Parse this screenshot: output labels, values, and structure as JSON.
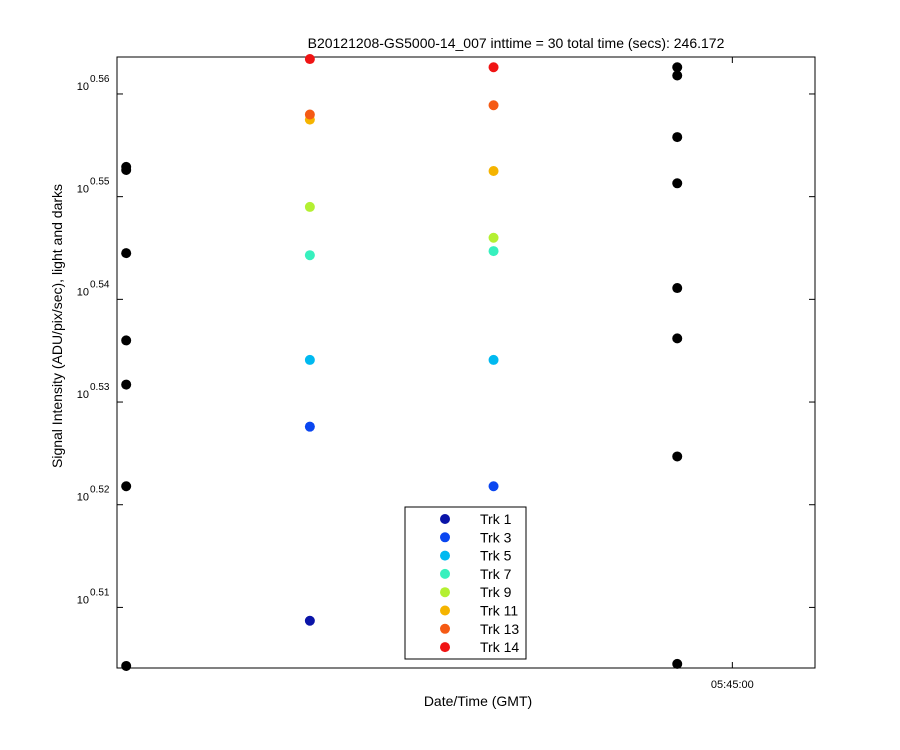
{
  "chart_data": {
    "type": "scatter",
    "title": "B20121208-GS5000-14_007 inttime = 30 total time (secs): 246.172",
    "xlabel": "Date/Time (GMT)",
    "ylabel": "Signal Intensity (ADU/pix/sec), light and darks",
    "y_scale": "log10",
    "x_ticks": [
      {
        "label": "05:45:00",
        "x": 3.3
      }
    ],
    "y_ticks": [
      {
        "base": "10",
        "exp": "0.51",
        "value": 0.51
      },
      {
        "base": "10",
        "exp": "0.52",
        "value": 0.52
      },
      {
        "base": "10",
        "exp": "0.53",
        "value": 0.53
      },
      {
        "base": "10",
        "exp": "0.54",
        "value": 0.54
      },
      {
        "base": "10",
        "exp": "0.55",
        "value": 0.55
      },
      {
        "base": "10",
        "exp": "0.56",
        "value": 0.56
      }
    ],
    "xlim": [
      -0.05,
      3.75
    ],
    "ylim": [
      0.5041,
      0.5636
    ],
    "grid": false,
    "legend_position": "bottom-center",
    "series": [
      {
        "name": "Trk 1",
        "color": "#0a14a8",
        "points": [
          [
            1,
            0.5087
          ]
        ]
      },
      {
        "name": "Trk 3",
        "color": "#0a46f0",
        "points": [
          [
            1,
            0.5276
          ],
          [
            2,
            0.5218
          ]
        ]
      },
      {
        "name": "Trk 5",
        "color": "#00b9f0",
        "points": [
          [
            1,
            0.5341
          ],
          [
            2,
            0.5341
          ]
        ]
      },
      {
        "name": "Trk 7",
        "color": "#37f0be",
        "points": [
          [
            1,
            0.5443
          ],
          [
            2,
            0.5447
          ]
        ]
      },
      {
        "name": "Trk 9",
        "color": "#b4f032",
        "points": [
          [
            1,
            0.549
          ],
          [
            2,
            0.546
          ]
        ]
      },
      {
        "name": "Trk 11",
        "color": "#f5b400",
        "points": [
          [
            1,
            0.5575
          ],
          [
            2,
            0.5525
          ]
        ]
      },
      {
        "name": "Trk 13",
        "color": "#f55a14",
        "points": [
          [
            1,
            0.558
          ],
          [
            2,
            0.5589
          ]
        ]
      },
      {
        "name": "Trk 14",
        "color": "#f01414",
        "points": [
          [
            1,
            0.5634
          ],
          [
            2,
            0.5626
          ]
        ]
      }
    ],
    "darks": {
      "color": "#000000",
      "points": [
        [
          0,
          0.5529
        ],
        [
          0,
          0.5526
        ],
        [
          0,
          0.5445
        ],
        [
          0,
          0.536
        ],
        [
          0,
          0.5317
        ],
        [
          0,
          0.5218
        ],
        [
          0,
          0.5043
        ],
        [
          3,
          0.5626
        ],
        [
          3,
          0.5618
        ],
        [
          3,
          0.5558
        ],
        [
          3,
          0.5513
        ],
        [
          3,
          0.5411
        ],
        [
          3,
          0.5362
        ],
        [
          3,
          0.5247
        ],
        [
          3,
          0.5045
        ]
      ]
    }
  }
}
